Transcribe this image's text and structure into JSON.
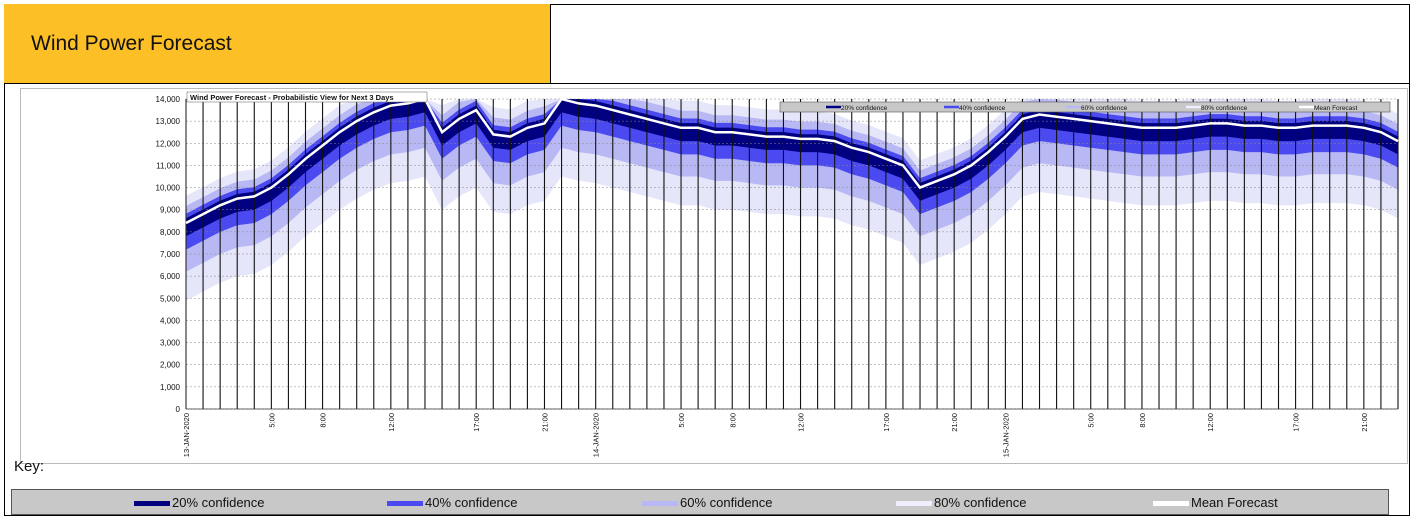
{
  "header": {
    "title": "Wind Power Forecast"
  },
  "key": {
    "label": "Key:",
    "items": [
      {
        "label": "20% confidence",
        "color": "#000080"
      },
      {
        "label": "40% confidence",
        "color": "#4a4af0"
      },
      {
        "label": "60% confidence",
        "color": "#b8b8f4"
      },
      {
        "label": "80% confidence",
        "color": "#e6e6fa"
      },
      {
        "label": "Mean Forecast",
        "color": "#ffffff"
      }
    ]
  },
  "chart_data": {
    "type": "area",
    "title": "Wind Power Forecast - Probabilistic View for Next 3 Days",
    "ylim": [
      0,
      14000
    ],
    "yticks": [
      0,
      1000,
      2000,
      3000,
      4000,
      5000,
      6000,
      7000,
      8000,
      9000,
      10000,
      11000,
      12000,
      13000,
      14000
    ],
    "ytick_labels": [
      "0",
      "1,000",
      "2,000",
      "3,000",
      "4,000",
      "5,000",
      "6,000",
      "7,000",
      "8,000",
      "9,000",
      "10,000",
      "11,000",
      "12,000",
      "13,000",
      "14,000"
    ],
    "grid": true,
    "legend_position": "top-right",
    "x_hours": [
      0,
      1,
      2,
      3,
      4,
      5,
      6,
      7,
      8,
      9,
      10,
      11,
      12,
      13,
      14,
      15,
      16,
      17,
      18,
      19,
      20,
      21,
      22,
      23,
      24,
      25,
      26,
      27,
      28,
      29,
      30,
      31,
      32,
      33,
      34,
      35,
      36,
      37,
      38,
      39,
      40,
      41,
      42,
      43,
      44,
      45,
      46,
      47,
      48,
      49,
      50,
      51,
      52,
      53,
      54,
      55,
      56,
      57,
      58,
      59,
      60,
      61,
      62,
      63,
      64,
      65,
      66,
      67,
      68,
      69,
      70,
      71
    ],
    "x_tick_labels": [
      {
        "hour": 0,
        "label": "13-JAN-2020"
      },
      {
        "hour": 5,
        "label": "5:00"
      },
      {
        "hour": 8,
        "label": "8:00"
      },
      {
        "hour": 12,
        "label": "12:00"
      },
      {
        "hour": 17,
        "label": "17:00"
      },
      {
        "hour": 21,
        "label": "21:00"
      },
      {
        "hour": 24,
        "label": "14-JAN-2020"
      },
      {
        "hour": 29,
        "label": "5:00"
      },
      {
        "hour": 32,
        "label": "8:00"
      },
      {
        "hour": 36,
        "label": "12:00"
      },
      {
        "hour": 41,
        "label": "17:00"
      },
      {
        "hour": 45,
        "label": "21:00"
      },
      {
        "hour": 48,
        "label": "15-JAN-2020"
      },
      {
        "hour": 53,
        "label": "5:00"
      },
      {
        "hour": 56,
        "label": "8:00"
      },
      {
        "hour": 60,
        "label": "12:00"
      },
      {
        "hour": 65,
        "label": "17:00"
      },
      {
        "hour": 69,
        "label": "21:00"
      }
    ],
    "series": [
      {
        "name": "Mean Forecast",
        "values": [
          8400,
          8800,
          9200,
          9500,
          9600,
          10000,
          10600,
          11300,
          11900,
          12500,
          13000,
          13400,
          13700,
          13800,
          14000,
          12500,
          13100,
          13500,
          12400,
          12300,
          12700,
          12900,
          14000,
          13800,
          13700,
          13500,
          13300,
          13100,
          12900,
          12700,
          12700,
          12500,
          12500,
          12400,
          12300,
          12300,
          12200,
          12200,
          12100,
          11800,
          11600,
          11300,
          11000,
          10000,
          10300,
          10600,
          11000,
          11600,
          12300,
          13100,
          13300,
          13200,
          13100,
          13000,
          12900,
          12800,
          12700,
          12700,
          12700,
          12800,
          12900,
          12900,
          12800,
          12800,
          12700,
          12700,
          12800,
          12800,
          12800,
          12700,
          12500,
          12100
        ]
      }
    ]
  }
}
